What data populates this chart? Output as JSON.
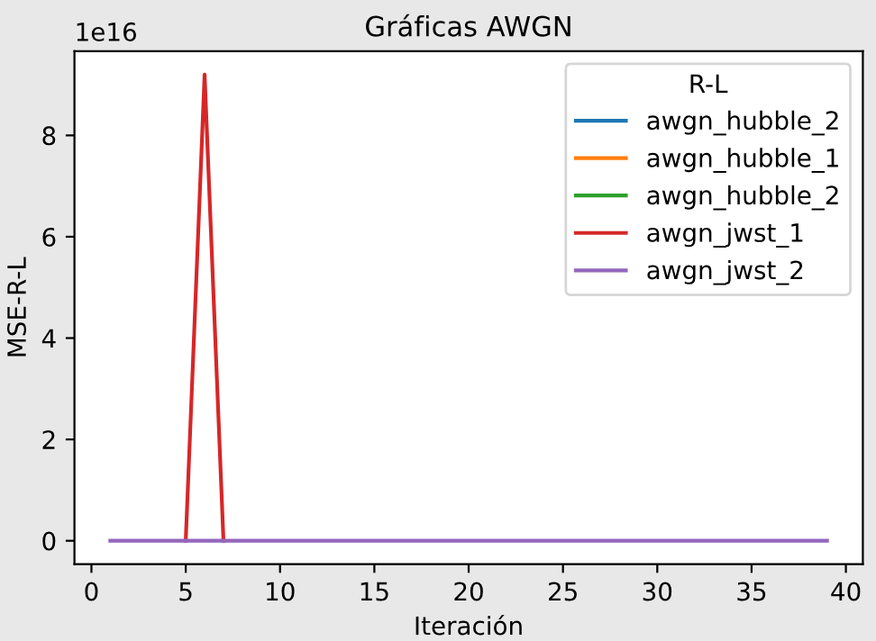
{
  "chart_data": {
    "type": "line",
    "title": "Gráficas AWGN",
    "xlabel": "Iteración",
    "ylabel": "MSE-R-L",
    "legend_title": "R-L",
    "legend": "top right",
    "grid": false,
    "annotations": [
      "1e16"
    ],
    "x": [
      1,
      2,
      3,
      4,
      5,
      6,
      7,
      8,
      9,
      10,
      11,
      12,
      13,
      14,
      15,
      16,
      17,
      18,
      19,
      20,
      21,
      22,
      23,
      24,
      25,
      26,
      27,
      28,
      29,
      30,
      31,
      32,
      33,
      34,
      35,
      36,
      37,
      38,
      39
    ],
    "xlim": [
      -0.9,
      40.9
    ],
    "xticks": [
      0,
      5,
      10,
      15,
      20,
      25,
      30,
      35,
      40
    ],
    "ylim": [
      -0.46,
      9.66
    ],
    "yticks": [
      0,
      2,
      4,
      6,
      8
    ],
    "series": [
      {
        "name": "awgn_hubble_2",
        "color": "#1f77b4",
        "values": [
          null,
          null,
          null,
          null,
          null,
          null,
          null,
          null,
          null,
          null,
          null,
          null,
          null,
          null,
          null,
          null,
          null,
          null,
          null,
          null,
          null,
          null,
          null,
          null,
          null,
          null,
          null,
          null,
          null,
          null,
          null,
          null,
          null,
          null,
          null,
          null,
          null,
          null,
          null
        ]
      },
      {
        "name": "awgn_hubble_1",
        "color": "#ff7f0e",
        "values": [
          null,
          null,
          null,
          null,
          null,
          null,
          null,
          null,
          null,
          null,
          null,
          null,
          null,
          null,
          null,
          null,
          null,
          null,
          null,
          null,
          null,
          null,
          null,
          null,
          null,
          null,
          null,
          null,
          null,
          null,
          null,
          null,
          null,
          null,
          null,
          null,
          null,
          null,
          null
        ]
      },
      {
        "name": "awgn_hubble_2",
        "color": "#2ca02c",
        "values": [
          null,
          null,
          null,
          null,
          null,
          null,
          null,
          null,
          null,
          null,
          null,
          null,
          null,
          null,
          null,
          null,
          null,
          null,
          null,
          null,
          null,
          null,
          null,
          null,
          null,
          null,
          null,
          null,
          null,
          null,
          null,
          null,
          null,
          null,
          null,
          null,
          null,
          null,
          null
        ]
      },
      {
        "name": "awgn_jwst_1",
        "color": "#d62728",
        "values": [
          null,
          null,
          null,
          null,
          0,
          9.2,
          0,
          null,
          null,
          null,
          null,
          null,
          null,
          null,
          null,
          null,
          null,
          null,
          null,
          null,
          null,
          null,
          null,
          null,
          null,
          null,
          null,
          null,
          null,
          null,
          null,
          null,
          null,
          null,
          null,
          null,
          null,
          null,
          null
        ]
      },
      {
        "name": "awgn_jwst_2",
        "color": "#9467bd",
        "values": [
          0,
          0,
          0,
          0,
          0,
          0,
          0,
          0,
          0,
          0,
          0,
          0,
          0,
          0,
          0,
          0,
          0,
          0,
          0,
          0,
          0,
          0,
          0,
          0,
          0,
          0,
          0,
          0,
          0,
          0,
          0,
          0,
          0,
          0,
          0,
          0,
          0,
          0,
          0
        ]
      }
    ]
  }
}
